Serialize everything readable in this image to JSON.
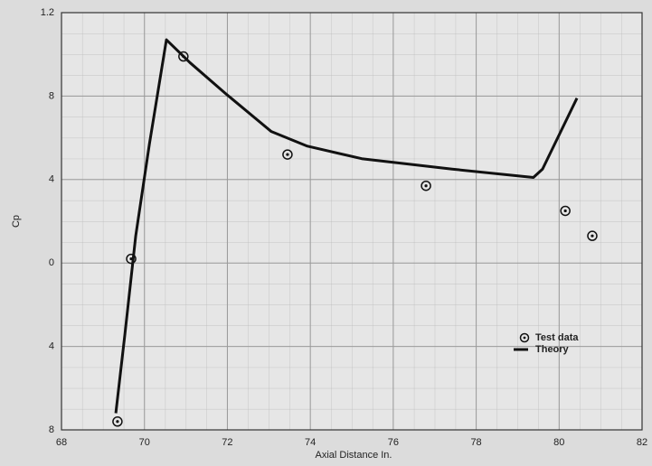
{
  "chart_data": {
    "type": "scatter_line",
    "xlabel": "Axial Distance  In.",
    "ylabel": "Cp",
    "xlim": [
      68,
      82
    ],
    "ylim": [
      -0.8,
      1.2
    ],
    "xticks": [
      68,
      70,
      72,
      74,
      76,
      78,
      80,
      82
    ],
    "yticks": [
      {
        "value": 1.2,
        "label": "1.2"
      },
      {
        "value": 0.8,
        "label": "8"
      },
      {
        "value": 0.4,
        "label": "4"
      },
      0,
      {
        "value": -0.4,
        "label": "4"
      },
      {
        "value": -0.8,
        "label": "8"
      }
    ],
    "grid": true,
    "legend": "lower right",
    "series": [
      {
        "name": "Test data",
        "kind": "points",
        "color": "#111111",
        "x": [
          69.35,
          69.68,
          70.94,
          73.45,
          76.79,
          80.15,
          80.8
        ],
        "values": [
          -0.76,
          0.02,
          0.99,
          0.52,
          0.37,
          0.25,
          0.13
        ]
      },
      {
        "name": "Theory",
        "kind": "line",
        "color": "#111111",
        "x": [
          69.31,
          69.53,
          69.79,
          70.12,
          70.53,
          71.1,
          71.97,
          73.06,
          73.93,
          75.24,
          77.42,
          79.38,
          79.6,
          80.43
        ],
        "values": [
          -0.72,
          -0.34,
          0.13,
          0.57,
          1.07,
          0.96,
          0.81,
          0.63,
          0.56,
          0.5,
          0.45,
          0.41,
          0.45,
          0.79
        ]
      }
    ]
  }
}
